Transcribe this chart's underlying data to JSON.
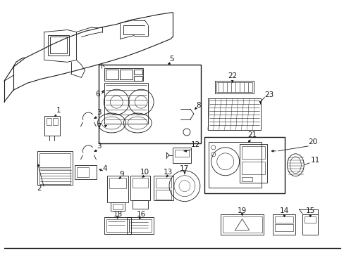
{
  "bg_color": "#ffffff",
  "line_color": "#1a1a1a",
  "fig_width": 4.89,
  "fig_height": 3.6,
  "dpi": 100,
  "gray": "#888888",
  "darkgray": "#444444"
}
